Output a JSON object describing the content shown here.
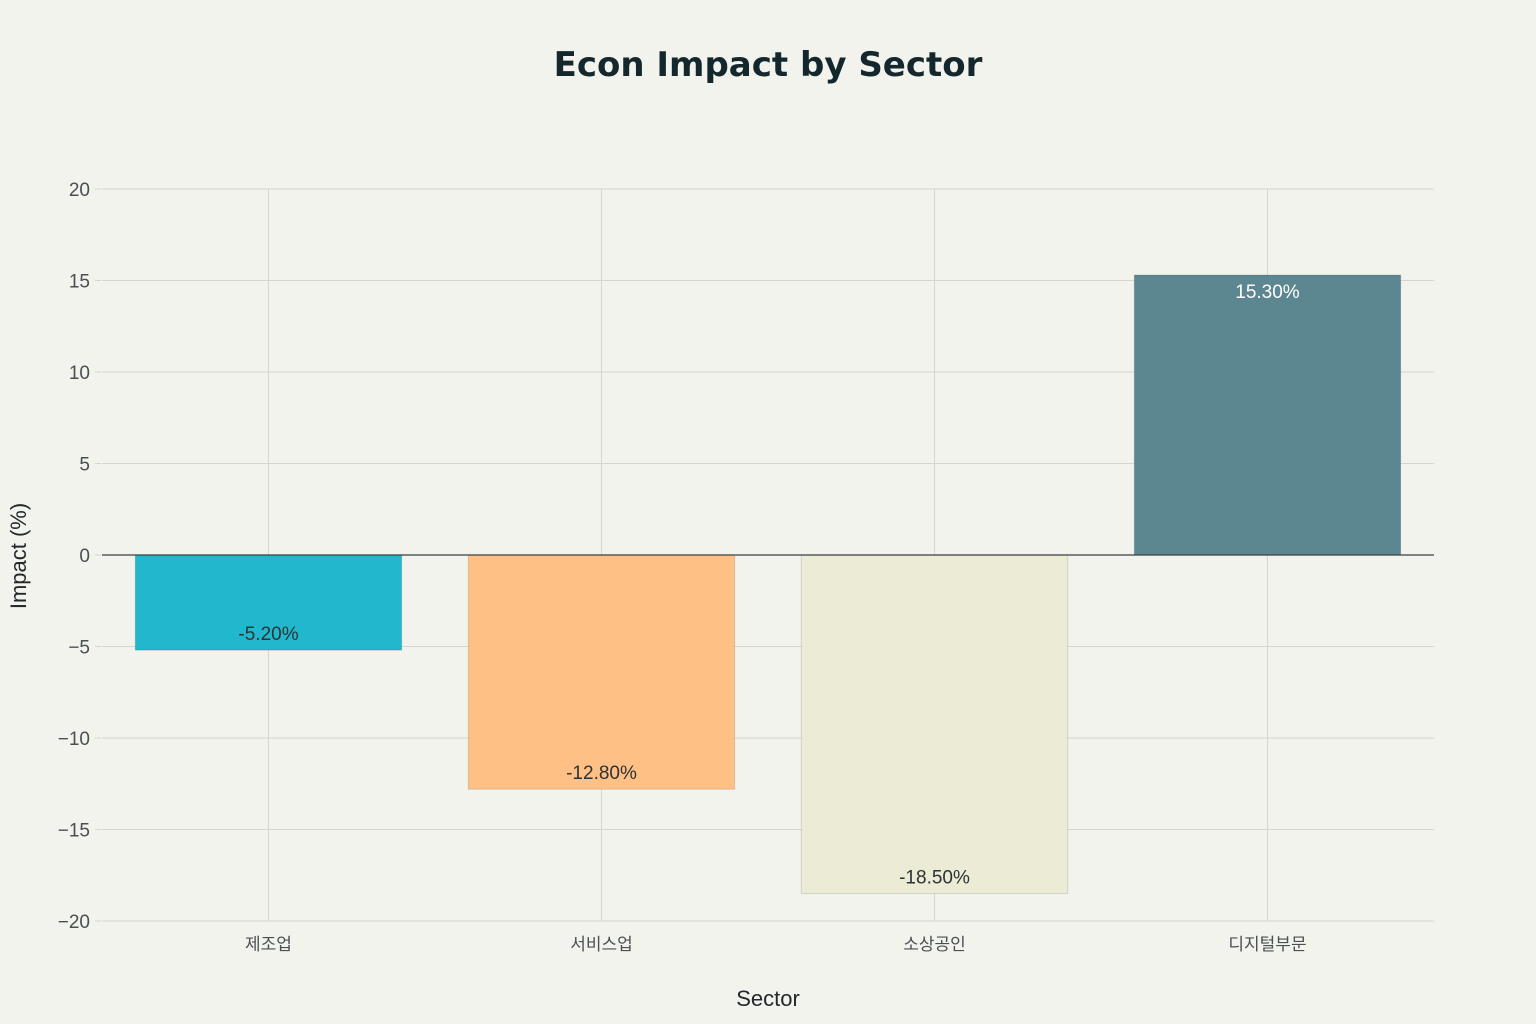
{
  "chart_data": {
    "type": "bar",
    "title": "Econ Impact by Sector",
    "xlabel": "Sector",
    "ylabel": "Impact (%)",
    "categories": [
      "제조업",
      "서비스업",
      "소상공인",
      "디지털부문"
    ],
    "values": [
      -5.2,
      -12.8,
      -18.5,
      15.3
    ],
    "data_labels": [
      "-5.20%",
      "-12.80%",
      "-18.50%",
      "15.30%"
    ],
    "colors": [
      "#21b8cd",
      "#ffc086",
      "#ecebd6",
      "#5d8790"
    ],
    "label_colors": [
      "#2c3336",
      "#2c3336",
      "#2c3336",
      "#ffffff"
    ],
    "ylim": [
      -20,
      20
    ],
    "yticks": [
      20,
      15,
      10,
      5,
      0,
      -5,
      -10,
      -15,
      -20
    ],
    "ytick_labels": [
      "20",
      "15",
      "10",
      "5",
      "0",
      "−5",
      "−10",
      "−15",
      "−20"
    ],
    "grid": true,
    "legend": "none"
  }
}
